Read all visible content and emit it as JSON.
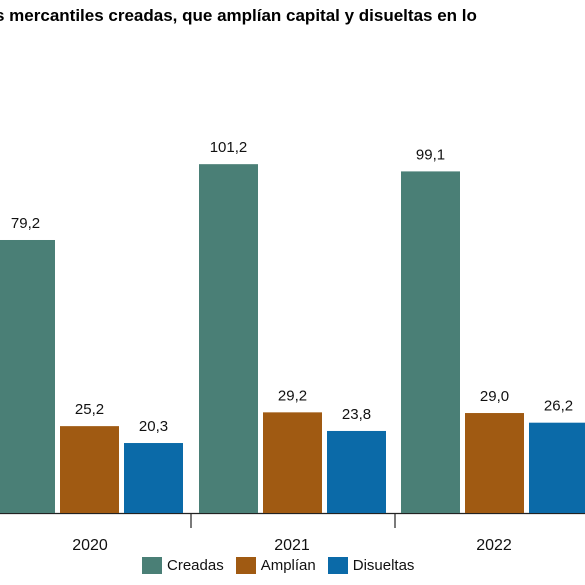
{
  "chart_data": {
    "type": "bar",
    "title": "s mercantiles creadas, que amplían capital y disueltas en lo",
    "categories": [
      "2020",
      "2021",
      "2022"
    ],
    "series": [
      {
        "name": "Creadas",
        "color": "#4a7f76",
        "values": [
          79.2,
          101.2,
          99.1
        ],
        "labels": [
          "79,2",
          "101,2",
          "99,1"
        ]
      },
      {
        "name": "Amplían",
        "color": "#a05a12",
        "values": [
          25.2,
          29.2,
          29.0
        ],
        "labels": [
          "25,2",
          "29,2",
          "29,0"
        ]
      },
      {
        "name": "Disueltas",
        "color": "#0b6aa8",
        "values": [
          20.3,
          23.8,
          26.2
        ],
        "labels": [
          "20,3",
          "23,8",
          "26,2"
        ]
      }
    ],
    "ylim": [
      0,
      120
    ],
    "grid": false,
    "legend_position": "bottom"
  }
}
